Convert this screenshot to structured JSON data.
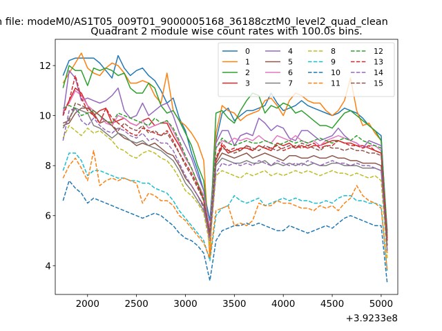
{
  "figure": {
    "suptitle": "n file: modeM0/AS1T05_009T01_9000005168_36188cztM0_level2_quad_clean",
    "offset_label": "+3.9233e8"
  },
  "chart_data": {
    "type": "line",
    "title": "Quadrant 2 module wise count rates with 100.0s bins.",
    "xlabel": "",
    "ylabel": "",
    "xlim": [
      1670,
      5170
    ],
    "ylim": [
      2.85,
      13.05
    ],
    "x_ticks": [
      2000,
      2500,
      3000,
      3500,
      4000,
      4500,
      5000
    ],
    "x_tick_labels": [
      "2000",
      "2500",
      "3000",
      "3500",
      "4000",
      "4500",
      "5000"
    ],
    "y_ticks": [
      4,
      6,
      8,
      10,
      12
    ],
    "y_tick_labels": [
      "4",
      "6",
      "8",
      "10",
      "12"
    ],
    "grid": false,
    "legend_position": "top-right",
    "legend_columns": 4,
    "x": [
      1750,
      1812,
      1875,
      1937,
      2000,
      2062,
      2125,
      2187,
      2250,
      2312,
      2375,
      2437,
      2500,
      2562,
      2625,
      2687,
      2750,
      2812,
      2875,
      2937,
      3000,
      3062,
      3125,
      3187,
      3250,
      3312,
      3375,
      3437,
      3500,
      3562,
      3625,
      3687,
      3750,
      3812,
      3875,
      3937,
      4000,
      4062,
      4125,
      4187,
      4250,
      4312,
      4375,
      4437,
      4500,
      4562,
      4625,
      4687,
      4750,
      4812,
      4875,
      4937,
      5000,
      5062
    ],
    "series": [
      {
        "name": "0",
        "color": "#1f77b4",
        "dash": "solid",
        "values": [
          11.6,
          12.2,
          12.3,
          12.3,
          12.3,
          12.3,
          12.1,
          11.8,
          11.5,
          12.4,
          11.9,
          11.6,
          11.8,
          11.9,
          11.6,
          11.4,
          11.0,
          10.5,
          10.7,
          9.9,
          9.4,
          8.5,
          7.8,
          7.0,
          5.8,
          9.0,
          10.1,
          10.3,
          9.8,
          10.0,
          10.2,
          10.2,
          10.3,
          10.4,
          10.9,
          10.5,
          10.2,
          10.3,
          10.4,
          10.6,
          10.4,
          10.3,
          10.2,
          10.1,
          10.0,
          10.1,
          10.3,
          10.2,
          10.1,
          9.9,
          9.6,
          9.4,
          9.2,
          5.0
        ]
      },
      {
        "name": "1",
        "color": "#ff7f0e",
        "dash": "solid",
        "values": [
          11.3,
          11.7,
          12.1,
          12.5,
          11.9,
          11.7,
          11.6,
          11.9,
          12.1,
          12.0,
          11.7,
          11.3,
          11.3,
          11.4,
          11.3,
          10.8,
          10.5,
          11.7,
          10.2,
          9.8,
          9.6,
          9.3,
          8.9,
          8.2,
          4.3,
          9.3,
          10.4,
          10.2,
          10.1,
          9.8,
          10.0,
          10.1,
          10.2,
          10.6,
          10.7,
          10.4,
          10.0,
          10.6,
          10.9,
          10.8,
          10.6,
          10.5,
          10.5,
          10.2,
          10.0,
          10.2,
          10.6,
          11.5,
          10.2,
          9.6,
          9.7,
          9.3,
          9.0,
          4.5
        ]
      },
      {
        "name": "2",
        "color": "#2ca02c",
        "dash": "solid",
        "values": [
          11.1,
          12.0,
          11.8,
          11.8,
          11.2,
          11.9,
          11.8,
          11.9,
          11.8,
          11.6,
          11.7,
          11.1,
          10.9,
          10.9,
          11.3,
          11.1,
          10.4,
          10.1,
          10.2,
          9.8,
          9.3,
          8.8,
          8.0,
          7.4,
          5.1,
          10.1,
          10.2,
          9.9,
          9.7,
          10.2,
          10.6,
          10.9,
          10.8,
          10.1,
          10.4,
          10.3,
          10.5,
          10.4,
          10.1,
          10.2,
          10.0,
          9.8,
          9.6,
          9.6,
          9.5,
          9.8,
          10.1,
          10.2,
          10.0,
          9.8,
          9.6,
          9.4,
          9.0,
          5.4
        ]
      },
      {
        "name": "3",
        "color": "#d62728",
        "dash": "solid",
        "values": [
          10.1,
          10.6,
          11.1,
          10.9,
          10.4,
          10.0,
          10.2,
          10.3,
          9.7,
          9.8,
          9.9,
          9.7,
          9.6,
          9.8,
          9.9,
          9.6,
          9.7,
          9.7,
          9.2,
          8.8,
          8.3,
          7.9,
          7.3,
          6.6,
          5.2,
          8.2,
          8.8,
          8.5,
          8.6,
          8.7,
          8.7,
          8.6,
          8.8,
          8.7,
          8.6,
          8.9,
          8.8,
          8.9,
          8.7,
          8.8,
          8.7,
          8.8,
          8.8,
          8.9,
          9.0,
          9.0,
          8.9,
          8.9,
          8.8,
          8.8,
          8.7,
          8.6,
          8.5,
          5.0
        ]
      },
      {
        "name": "4",
        "color": "#9467bd",
        "dash": "solid",
        "values": [
          10.0,
          11.8,
          11.5,
          10.6,
          10.7,
          10.6,
          10.5,
          10.6,
          10.8,
          11.1,
          10.2,
          9.9,
          10.0,
          10.5,
          10.0,
          10.2,
          10.4,
          10.5,
          10.0,
          9.3,
          8.8,
          8.3,
          7.6,
          7.0,
          5.4,
          8.9,
          9.4,
          9.4,
          8.8,
          9.2,
          9.3,
          9.2,
          9.9,
          9.7,
          9.4,
          9.6,
          9.5,
          9.1,
          9.0,
          9.4,
          9.4,
          9.2,
          9.0,
          9.1,
          9.2,
          9.5,
          9.2,
          9.0,
          8.9,
          8.7,
          9.0,
          8.9,
          8.8,
          5.3
        ]
      },
      {
        "name": "5",
        "color": "#8c564b",
        "dash": "solid",
        "values": [
          9.6,
          9.7,
          10.1,
          10.3,
          10.3,
          10.1,
          9.7,
          9.8,
          9.6,
          9.3,
          9.1,
          9.0,
          8.8,
          8.9,
          8.8,
          8.9,
          8.7,
          8.5,
          8.4,
          8.0,
          7.5,
          7.2,
          6.8,
          6.4,
          5.3,
          8.1,
          8.5,
          8.4,
          8.3,
          8.4,
          8.5,
          8.3,
          8.4,
          8.5,
          8.4,
          8.3,
          8.2,
          8.4,
          8.4,
          8.3,
          8.3,
          8.4,
          8.3,
          8.3,
          8.4,
          8.3,
          8.3,
          8.2,
          8.2,
          8.1,
          8.1,
          8.1,
          8.0,
          4.8
        ]
      },
      {
        "name": "6",
        "color": "#e377c2",
        "dash": "solid",
        "values": [
          10.2,
          10.5,
          11.0,
          10.8,
          10.4,
          10.2,
          10.0,
          9.7,
          9.6,
          10.0,
          9.9,
          9.7,
          9.6,
          9.8,
          9.5,
          9.6,
          9.7,
          9.8,
          9.4,
          8.9,
          8.3,
          7.9,
          7.3,
          6.8,
          5.5,
          8.7,
          9.0,
          8.9,
          9.1,
          9.0,
          9.1,
          9.0,
          9.2,
          9.0,
          8.9,
          9.2,
          9.1,
          9.0,
          9.2,
          9.0,
          8.9,
          9.0,
          8.8,
          9.0,
          9.1,
          9.2,
          9.1,
          9.0,
          8.9,
          8.7,
          8.8,
          8.8,
          8.6,
          4.6
        ]
      },
      {
        "name": "7",
        "color": "#7f7f7f",
        "dash": "solid",
        "values": [
          9.5,
          9.9,
          10.3,
          10.2,
          10.1,
          9.6,
          9.5,
          9.3,
          9.1,
          9.3,
          9.2,
          9.0,
          8.9,
          9.0,
          8.8,
          8.7,
          8.6,
          8.4,
          8.2,
          7.8,
          7.3,
          7.0,
          6.6,
          6.2,
          5.1,
          8.0,
          8.3,
          8.2,
          8.1,
          8.1,
          8.2,
          8.1,
          8.1,
          8.2,
          8.0,
          8.1,
          8.0,
          8.1,
          8.0,
          8.1,
          8.0,
          8.1,
          8.0,
          8.0,
          8.1,
          8.1,
          8.0,
          8.0,
          8.0,
          7.9,
          7.9,
          7.9,
          7.8,
          4.6
        ]
      },
      {
        "name": "8",
        "color": "#bcbd22",
        "dash": "dashed",
        "values": [
          9.1,
          9.6,
          9.4,
          9.2,
          9.5,
          9.3,
          9.4,
          9.2,
          9.0,
          8.7,
          8.6,
          8.4,
          8.3,
          8.5,
          8.6,
          8.5,
          8.3,
          8.2,
          7.9,
          7.5,
          7.0,
          6.8,
          6.5,
          6.1,
          4.8,
          7.6,
          7.8,
          7.7,
          7.6,
          7.5,
          7.7,
          7.6,
          7.7,
          7.8,
          7.6,
          7.7,
          7.6,
          7.7,
          7.8,
          7.7,
          7.8,
          7.7,
          7.6,
          7.7,
          7.8,
          7.7,
          7.7,
          7.6,
          7.7,
          7.6,
          7.5,
          7.6,
          7.4,
          4.3
        ]
      },
      {
        "name": "9",
        "color": "#17becf",
        "dash": "dashed",
        "values": [
          7.8,
          8.5,
          8.5,
          8.2,
          7.6,
          7.8,
          7.8,
          7.7,
          7.6,
          7.5,
          7.5,
          7.4,
          7.4,
          7.3,
          7.3,
          7.1,
          7.0,
          6.9,
          6.6,
          6.2,
          5.9,
          5.6,
          5.3,
          5.0,
          4.2,
          6.0,
          6.3,
          6.4,
          6.8,
          6.6,
          6.5,
          6.6,
          6.7,
          6.4,
          6.5,
          6.6,
          6.7,
          6.6,
          6.7,
          6.6,
          6.6,
          6.5,
          6.5,
          6.6,
          6.5,
          6.7,
          6.8,
          6.8,
          6.6,
          6.6,
          6.5,
          6.5,
          6.4,
          3.8
        ]
      },
      {
        "name": "10",
        "color": "#1f77b4",
        "dash": "dashed",
        "values": [
          6.6,
          7.4,
          7.1,
          6.9,
          6.5,
          6.7,
          6.6,
          6.5,
          6.4,
          6.3,
          6.2,
          6.1,
          6.0,
          5.9,
          6.0,
          6.1,
          6.0,
          5.8,
          5.6,
          5.3,
          5.1,
          5.0,
          4.8,
          4.5,
          3.4,
          5.0,
          5.4,
          5.5,
          5.6,
          5.6,
          5.7,
          5.6,
          5.7,
          5.6,
          5.5,
          5.4,
          5.4,
          5.6,
          5.5,
          5.4,
          5.3,
          5.4,
          5.5,
          5.6,
          5.5,
          5.7,
          5.9,
          6.0,
          5.9,
          5.8,
          5.7,
          5.6,
          5.6,
          3.3
        ]
      },
      {
        "name": "11",
        "color": "#ff7f0e",
        "dash": "dashed",
        "values": [
          7.5,
          8.0,
          8.3,
          7.9,
          7.4,
          8.6,
          7.2,
          7.4,
          7.5,
          7.4,
          7.5,
          7.4,
          7.3,
          6.5,
          6.9,
          6.8,
          6.6,
          6.6,
          6.4,
          6.0,
          5.8,
          5.5,
          5.2,
          4.9,
          4.3,
          6.2,
          6.3,
          6.4,
          5.6,
          5.7,
          5.6,
          5.8,
          6.5,
          6.4,
          6.4,
          6.6,
          6.5,
          6.5,
          6.4,
          6.3,
          6.3,
          6.2,
          6.4,
          6.3,
          6.4,
          6.2,
          6.5,
          6.7,
          7.2,
          6.8,
          6.6,
          6.5,
          6.3,
          3.8
        ]
      },
      {
        "name": "12",
        "color": "#2ca02c",
        "dash": "dashed",
        "values": [
          10.3,
          10.4,
          10.3,
          10.0,
          10.1,
          10.2,
          10.0,
          9.8,
          9.7,
          10.1,
          10.0,
          9.9,
          9.8,
          9.7,
          9.6,
          9.9,
          9.7,
          9.8,
          9.5,
          9.0,
          8.4,
          7.9,
          7.3,
          6.7,
          5.3,
          8.7,
          9.1,
          8.9,
          8.8,
          8.9,
          9.0,
          8.9,
          8.9,
          9.0,
          8.9,
          8.8,
          8.9,
          9.0,
          8.9,
          9.0,
          8.9,
          9.0,
          9.1,
          9.0,
          8.9,
          9.0,
          9.1,
          9.0,
          9.2,
          9.0,
          8.9,
          8.8,
          8.7,
          5.2
        ]
      },
      {
        "name": "13",
        "color": "#d62728",
        "dash": "dashed",
        "values": [
          10.0,
          10.6,
          11.6,
          10.7,
          10.2,
          10.0,
          9.7,
          10.3,
          9.9,
          9.7,
          9.5,
          9.3,
          9.2,
          9.5,
          9.4,
          9.3,
          9.2,
          9.4,
          9.0,
          8.5,
          8.1,
          7.7,
          7.2,
          6.6,
          5.2,
          8.3,
          8.9,
          8.6,
          8.7,
          8.6,
          8.8,
          8.6,
          8.8,
          8.7,
          8.7,
          8.8,
          8.6,
          8.7,
          8.8,
          8.7,
          8.8,
          8.9,
          8.7,
          8.8,
          8.8,
          9.0,
          8.9,
          8.8,
          8.8,
          8.7,
          8.8,
          8.6,
          8.5,
          5.1
        ]
      },
      {
        "name": "14",
        "color": "#9467bd",
        "dash": "dashed",
        "values": [
          9.0,
          10.2,
          10.3,
          9.8,
          9.6,
          9.9,
          9.6,
          9.4,
          9.3,
          9.5,
          9.4,
          9.2,
          9.1,
          9.3,
          9.0,
          9.1,
          8.9,
          8.9,
          8.6,
          8.1,
          7.6,
          7.2,
          6.8,
          6.3,
          5.0,
          7.7,
          8.1,
          8.0,
          8.1,
          8.0,
          8.1,
          8.0,
          8.2,
          8.1,
          8.0,
          8.2,
          8.1,
          8.0,
          8.1,
          8.0,
          8.2,
          8.1,
          8.0,
          8.1,
          8.2,
          8.1,
          8.1,
          8.0,
          8.1,
          8.0,
          8.0,
          7.9,
          7.8,
          4.6
        ]
      },
      {
        "name": "15",
        "color": "#8c564b",
        "dash": "dashed",
        "values": [
          9.7,
          9.8,
          10.5,
          10.4,
          10.3,
          10.2,
          10.0,
          9.8,
          9.6,
          9.4,
          9.7,
          9.5,
          9.4,
          9.6,
          9.3,
          9.4,
          9.2,
          9.3,
          8.9,
          8.5,
          8.0,
          7.6,
          7.1,
          6.6,
          5.3,
          8.3,
          8.7,
          8.6,
          8.5,
          8.6,
          8.8,
          8.7,
          8.6,
          8.8,
          8.7,
          8.6,
          8.7,
          8.8,
          8.7,
          8.9,
          8.8,
          8.7,
          8.6,
          8.8,
          8.7,
          8.7,
          8.6,
          8.7,
          8.6,
          8.6,
          8.5,
          8.5,
          8.4,
          4.8
        ]
      }
    ]
  }
}
